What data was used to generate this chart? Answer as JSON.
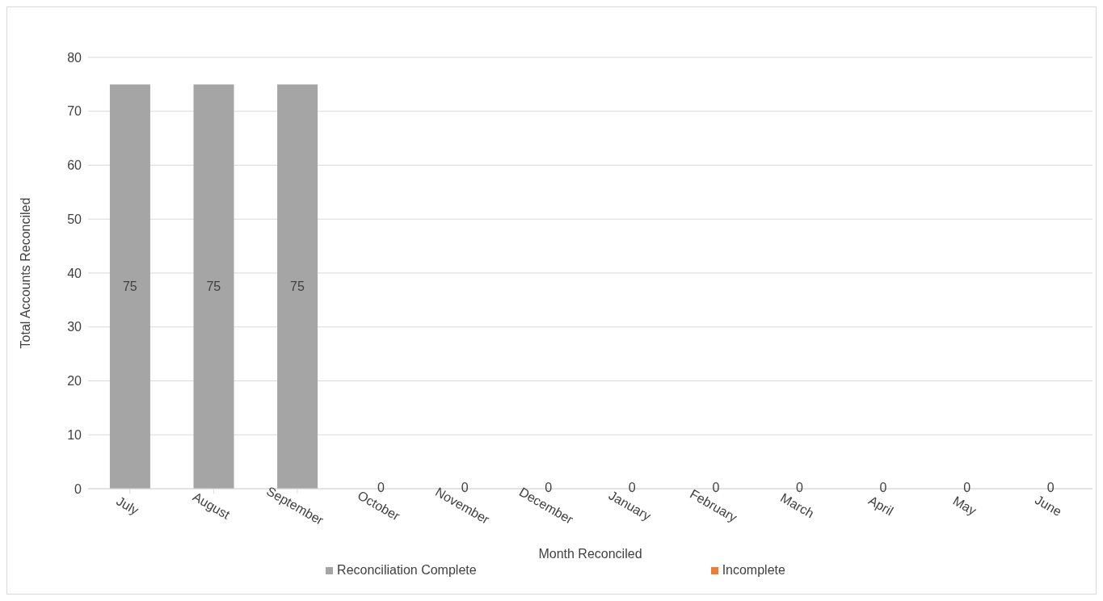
{
  "chart_data": {
    "type": "bar",
    "stacked": true,
    "xlabel": "Month Reconciled",
    "ylabel": "Total Accounts Reconciled",
    "categories": [
      "July",
      "August",
      "September",
      "October",
      "November",
      "December",
      "January",
      "February",
      "March",
      "April",
      "May",
      "June"
    ],
    "series": [
      {
        "name": "Reconciliation Complete",
        "color": "#a5a5a5",
        "values": [
          75,
          75,
          75,
          0,
          0,
          0,
          0,
          0,
          0,
          0,
          0,
          0
        ]
      },
      {
        "name": "Incomplete",
        "color": "#ed7d31",
        "values": [
          null,
          null,
          null,
          null,
          null,
          null,
          null,
          null,
          null,
          null,
          null,
          null
        ]
      }
    ],
    "ylim": [
      0,
      80
    ],
    "yticks": [
      0,
      10,
      20,
      30,
      40,
      50,
      60,
      70,
      80
    ],
    "grid": "y",
    "legend": "bottom",
    "data_labels": true
  }
}
